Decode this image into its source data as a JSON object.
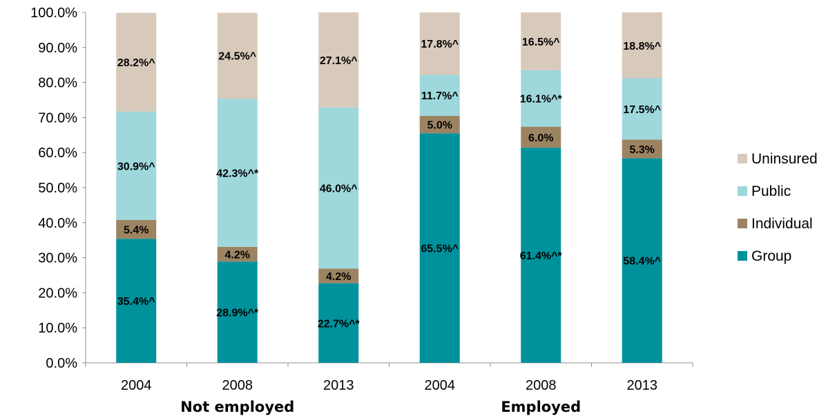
{
  "chart_data": {
    "type": "bar",
    "stacked": true,
    "categories": [
      "2004",
      "2008",
      "2013",
      "2004",
      "2008",
      "2013"
    ],
    "groups": [
      {
        "label": "Not employed",
        "categories": [
          0,
          1,
          2
        ]
      },
      {
        "label": "Employed",
        "categories": [
          3,
          4,
          5
        ]
      }
    ],
    "ylim": [
      0,
      100
    ],
    "yticks": [
      "0.0%",
      "10.0%",
      "20.0%",
      "30.0%",
      "40.0%",
      "50.0%",
      "60.0%",
      "70.0%",
      "80.0%",
      "90.0%",
      "100.0%"
    ],
    "legend_position": "right",
    "grid": false,
    "series": [
      {
        "name": "Group",
        "color": "#00929c",
        "values": [
          35.4,
          28.9,
          22.7,
          65.5,
          61.4,
          58.4
        ],
        "labels": [
          "35.4%^",
          "28.9%^*",
          "22.7%^*",
          "65.5%^",
          "61.4%^*",
          "58.4%^"
        ]
      },
      {
        "name": "Individual",
        "color": "#9c8462",
        "values": [
          5.4,
          4.2,
          4.2,
          5.0,
          6.0,
          5.3
        ],
        "labels": [
          "5.4%",
          "4.2%",
          "4.2%",
          "5.0%",
          "6.0%",
          "5.3%"
        ]
      },
      {
        "name": "Public",
        "color": "#9ed8dc",
        "values": [
          30.9,
          42.3,
          46.0,
          11.7,
          16.1,
          17.5
        ],
        "labels": [
          "30.9%^",
          "42.3%^*",
          "46.0%^",
          "11.7%^",
          "16.1%^*",
          "17.5%^"
        ]
      },
      {
        "name": "Uninsured",
        "color": "#d8cabb",
        "values": [
          28.2,
          24.5,
          27.1,
          17.8,
          16.5,
          18.8
        ],
        "labels": [
          "28.2%^",
          "24.5%^",
          "27.1%^",
          "17.8%^",
          "16.5%^",
          "18.8%^"
        ]
      }
    ]
  }
}
